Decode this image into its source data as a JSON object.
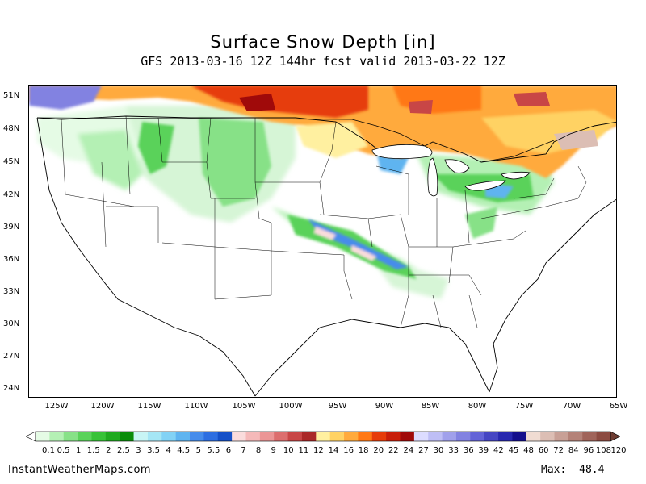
{
  "title": "Surface Snow Depth [in]",
  "subtitle": "GFS 2013-03-16 12Z 144hr fcst valid 2013-03-22 12Z",
  "lat_labels": [
    "51N",
    "48N",
    "45N",
    "42N",
    "39N",
    "36N",
    "33N",
    "30N",
    "27N",
    "24N"
  ],
  "lon_labels": [
    "125W",
    "120W",
    "115W",
    "110W",
    "105W",
    "100W",
    "95W",
    "90W",
    "85W",
    "80W",
    "75W",
    "70W",
    "65W"
  ],
  "colorbar": {
    "labels": [
      "0.1",
      "0.5",
      "1",
      "1.5",
      "2",
      "2.5",
      "3",
      "3.5",
      "4",
      "4.5",
      "5",
      "5.5",
      "6",
      "7",
      "8",
      "9",
      "10",
      "11",
      "12",
      "14",
      "16",
      "18",
      "20",
      "22",
      "24",
      "27",
      "30",
      "33",
      "36",
      "39",
      "42",
      "45",
      "48",
      "60",
      "72",
      "84",
      "96",
      "108",
      "120"
    ],
    "colors": [
      "#e5fbe5",
      "#b4f0b4",
      "#87e187",
      "#5ad25a",
      "#37c237",
      "#1faa1f",
      "#0a8c0a",
      "#c8f5f5",
      "#a5e6f5",
      "#82d2f5",
      "#5fb4f0",
      "#468ceb",
      "#2d6ee1",
      "#1450c8",
      "#fadcdc",
      "#f5b9b9",
      "#eb9696",
      "#dc6e6e",
      "#c84646",
      "#aa2828",
      "#fff0a0",
      "#ffd264",
      "#ffaa3c",
      "#ff7814",
      "#e63c0a",
      "#c81e0a",
      "#a00a0a",
      "#dcdcff",
      "#bebef5",
      "#a0a0eb",
      "#8282e1",
      "#6464d7",
      "#4646c3",
      "#2828af",
      "#140f8c",
      "#f0dcd2",
      "#dcbeb4",
      "#c8a096",
      "#b48278",
      "#a0645a",
      "#8c4b41"
    ]
  },
  "footer": {
    "site": "InstantWeatherMaps.com",
    "max_label": "Max:",
    "max_value": "48.4"
  }
}
